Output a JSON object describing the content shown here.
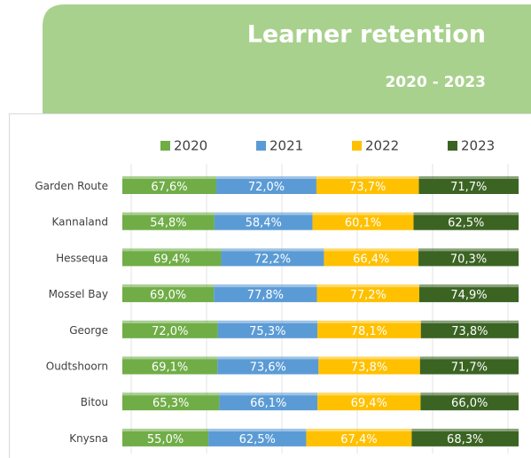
{
  "chart_data": {
    "type": "bar",
    "orientation": "horizontal",
    "stacking": "percent",
    "title": "Learner retention",
    "subtitle": "2020 - 2023",
    "categories": [
      "Garden Route",
      "Kannaland",
      "Hessequa",
      "Mossel Bay",
      "George",
      "Oudtshoorn",
      "Bitou",
      "Knysna"
    ],
    "series": [
      {
        "name": "2020",
        "color": "#70ad47",
        "values": [
          67.6,
          54.8,
          69.4,
          69.0,
          72.0,
          69.1,
          65.3,
          55.0
        ],
        "value_labels": [
          "67,6%",
          "54,8%",
          "69,4%",
          "69,0%",
          "72,0%",
          "69,1%",
          "65,3%",
          "55,0%"
        ]
      },
      {
        "name": "2021",
        "color": "#5b9bd5",
        "values": [
          72.0,
          58.4,
          72.2,
          77.8,
          75.3,
          73.6,
          66.1,
          62.5
        ],
        "value_labels": [
          "72,0%",
          "58,4%",
          "72,2%",
          "77,8%",
          "75,3%",
          "73,6%",
          "66,1%",
          "62,5%"
        ]
      },
      {
        "name": "2022",
        "color": "#ffc000",
        "values": [
          73.7,
          60.1,
          66.4,
          77.2,
          78.1,
          73.8,
          69.4,
          67.4
        ],
        "value_labels": [
          "73,7%",
          "60,1%",
          "66,4%",
          "77,2%",
          "78,1%",
          "73,8%",
          "69,4%",
          "67,4%"
        ]
      },
      {
        "name": "2023",
        "color": "#3b6423",
        "values": [
          71.7,
          62.5,
          70.3,
          74.9,
          73.8,
          71.7,
          66.0,
          68.3
        ],
        "value_labels": [
          "71,7%",
          "62,5%",
          "70,3%",
          "74,9%",
          "73,8%",
          "71,7%",
          "66,0%",
          "68,3%"
        ]
      }
    ],
    "legend": "top"
  }
}
